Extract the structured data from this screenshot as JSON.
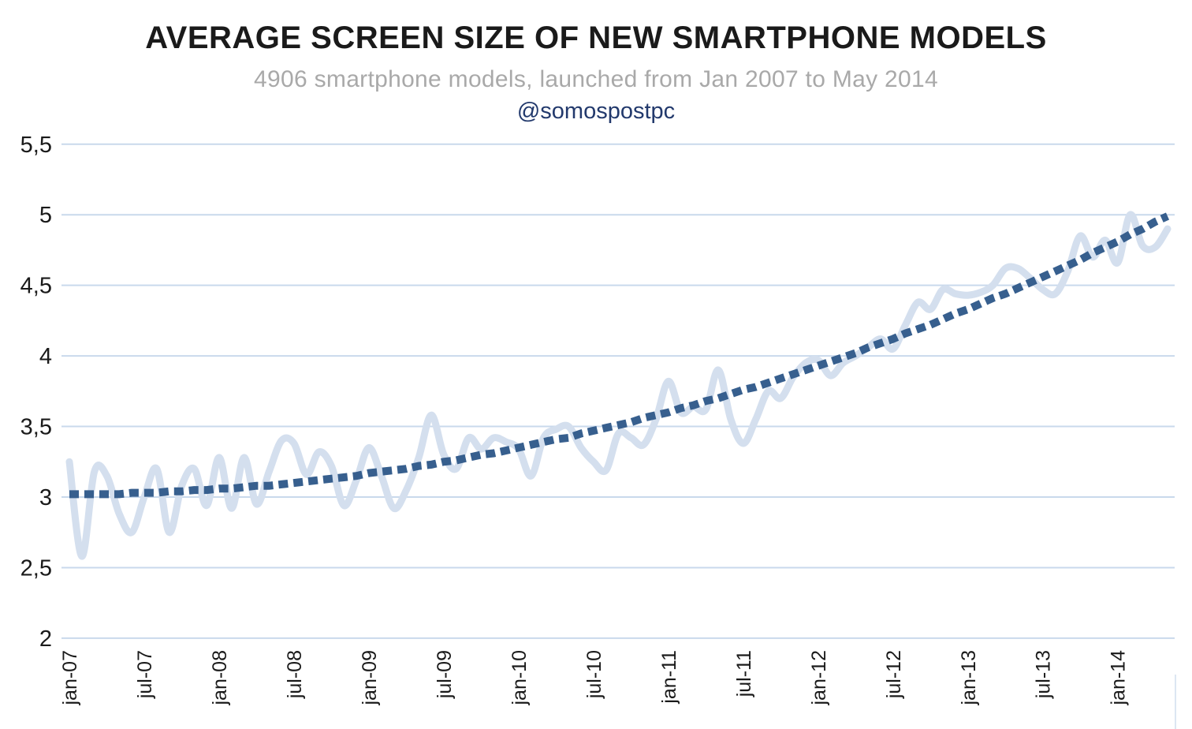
{
  "header": {
    "title": "AVERAGE SCREEN SIZE OF NEW SMARTPHONE MODELS",
    "subtitle": "4906 smartphone models, launched from Jan 2007 to May 2014",
    "handle": "@somospostpc"
  },
  "chart_data": {
    "type": "line",
    "title": "AVERAGE SCREEN SIZE OF NEW SMARTPHONE MODELS",
    "subtitle": "4906 smartphone models, launched from Jan 2007 to May 2014",
    "annotation": "@somospostpc",
    "x_range_months": [
      "Jan 2007",
      "May 2014"
    ],
    "x_tick_labels": [
      "jan-07",
      "jul-07",
      "jan-08",
      "jul-08",
      "jan-09",
      "jul-09",
      "jan-10",
      "jul-10",
      "jan-11",
      "jul-11",
      "jan-12",
      "jul-12",
      "jan-13",
      "jul-13",
      "jan-14"
    ],
    "x_tick_month_indices": [
      0,
      6,
      12,
      18,
      24,
      30,
      36,
      42,
      48,
      54,
      60,
      66,
      72,
      78,
      84
    ],
    "y_tick_labels": [
      "5,5",
      "5",
      "4,5",
      "4",
      "3,5",
      "3",
      "2,5",
      "2"
    ],
    "y_tick_values": [
      5.5,
      5,
      4.5,
      4,
      3.5,
      3,
      2.5,
      2
    ],
    "ylim": [
      2,
      5.5
    ],
    "grid": "horizontal",
    "legend": "none",
    "series": [
      {
        "name": "monthly-average-screen-size-inches",
        "style": "solid-smooth",
        "color": "#d4dfee",
        "values": [
          3.25,
          2.58,
          3.18,
          3.15,
          2.88,
          2.75,
          3.0,
          3.2,
          2.75,
          3.08,
          3.2,
          2.94,
          3.28,
          2.92,
          3.28,
          2.95,
          3.18,
          3.4,
          3.38,
          3.16,
          3.32,
          3.22,
          2.94,
          3.12,
          3.35,
          3.15,
          2.92,
          3.05,
          3.28,
          3.58,
          3.3,
          3.2,
          3.42,
          3.34,
          3.42,
          3.39,
          3.34,
          3.15,
          3.42,
          3.48,
          3.5,
          3.35,
          3.25,
          3.19,
          3.45,
          3.42,
          3.37,
          3.55,
          3.82,
          3.6,
          3.64,
          3.62,
          3.9,
          3.55,
          3.38,
          3.55,
          3.75,
          3.7,
          3.85,
          3.95,
          3.97,
          3.86,
          3.95,
          4.0,
          4.06,
          4.12,
          4.05,
          4.22,
          4.38,
          4.33,
          4.47,
          4.44,
          4.43,
          4.45,
          4.5,
          4.62,
          4.62,
          4.55,
          4.47,
          4.44,
          4.6,
          4.85,
          4.7,
          4.82,
          4.66,
          5.0,
          4.78,
          4.77,
          4.9
        ]
      },
      {
        "name": "trend",
        "style": "dashed",
        "color": "#375f8e",
        "values": [
          3.02,
          3.02,
          3.02,
          3.02,
          3.02,
          3.03,
          3.03,
          3.03,
          3.04,
          3.04,
          3.05,
          3.05,
          3.06,
          3.06,
          3.07,
          3.08,
          3.08,
          3.09,
          3.1,
          3.11,
          3.12,
          3.13,
          3.14,
          3.15,
          3.17,
          3.18,
          3.19,
          3.2,
          3.22,
          3.23,
          3.25,
          3.26,
          3.28,
          3.3,
          3.31,
          3.33,
          3.35,
          3.37,
          3.39,
          3.41,
          3.42,
          3.45,
          3.47,
          3.49,
          3.51,
          3.53,
          3.56,
          3.58,
          3.6,
          3.63,
          3.65,
          3.68,
          3.7,
          3.73,
          3.76,
          3.78,
          3.81,
          3.84,
          3.87,
          3.9,
          3.93,
          3.96,
          3.99,
          4.02,
          4.06,
          4.09,
          4.12,
          4.16,
          4.19,
          4.22,
          4.26,
          4.3,
          4.33,
          4.37,
          4.41,
          4.44,
          4.48,
          4.52,
          4.56,
          4.6,
          4.64,
          4.68,
          4.73,
          4.77,
          4.81,
          4.86,
          4.9,
          4.95,
          4.99
        ]
      }
    ]
  },
  "colors": {
    "background": "#ffffff",
    "title": "#1a1a1a",
    "subtitle": "#a9a9a9",
    "handle": "#22396c",
    "gridline": "#c9d9ec",
    "axis_label": "#1a1a1a",
    "series_monthly": "#d4dfee",
    "series_trend": "#375f8e",
    "edge_line": "#dce6f2"
  }
}
